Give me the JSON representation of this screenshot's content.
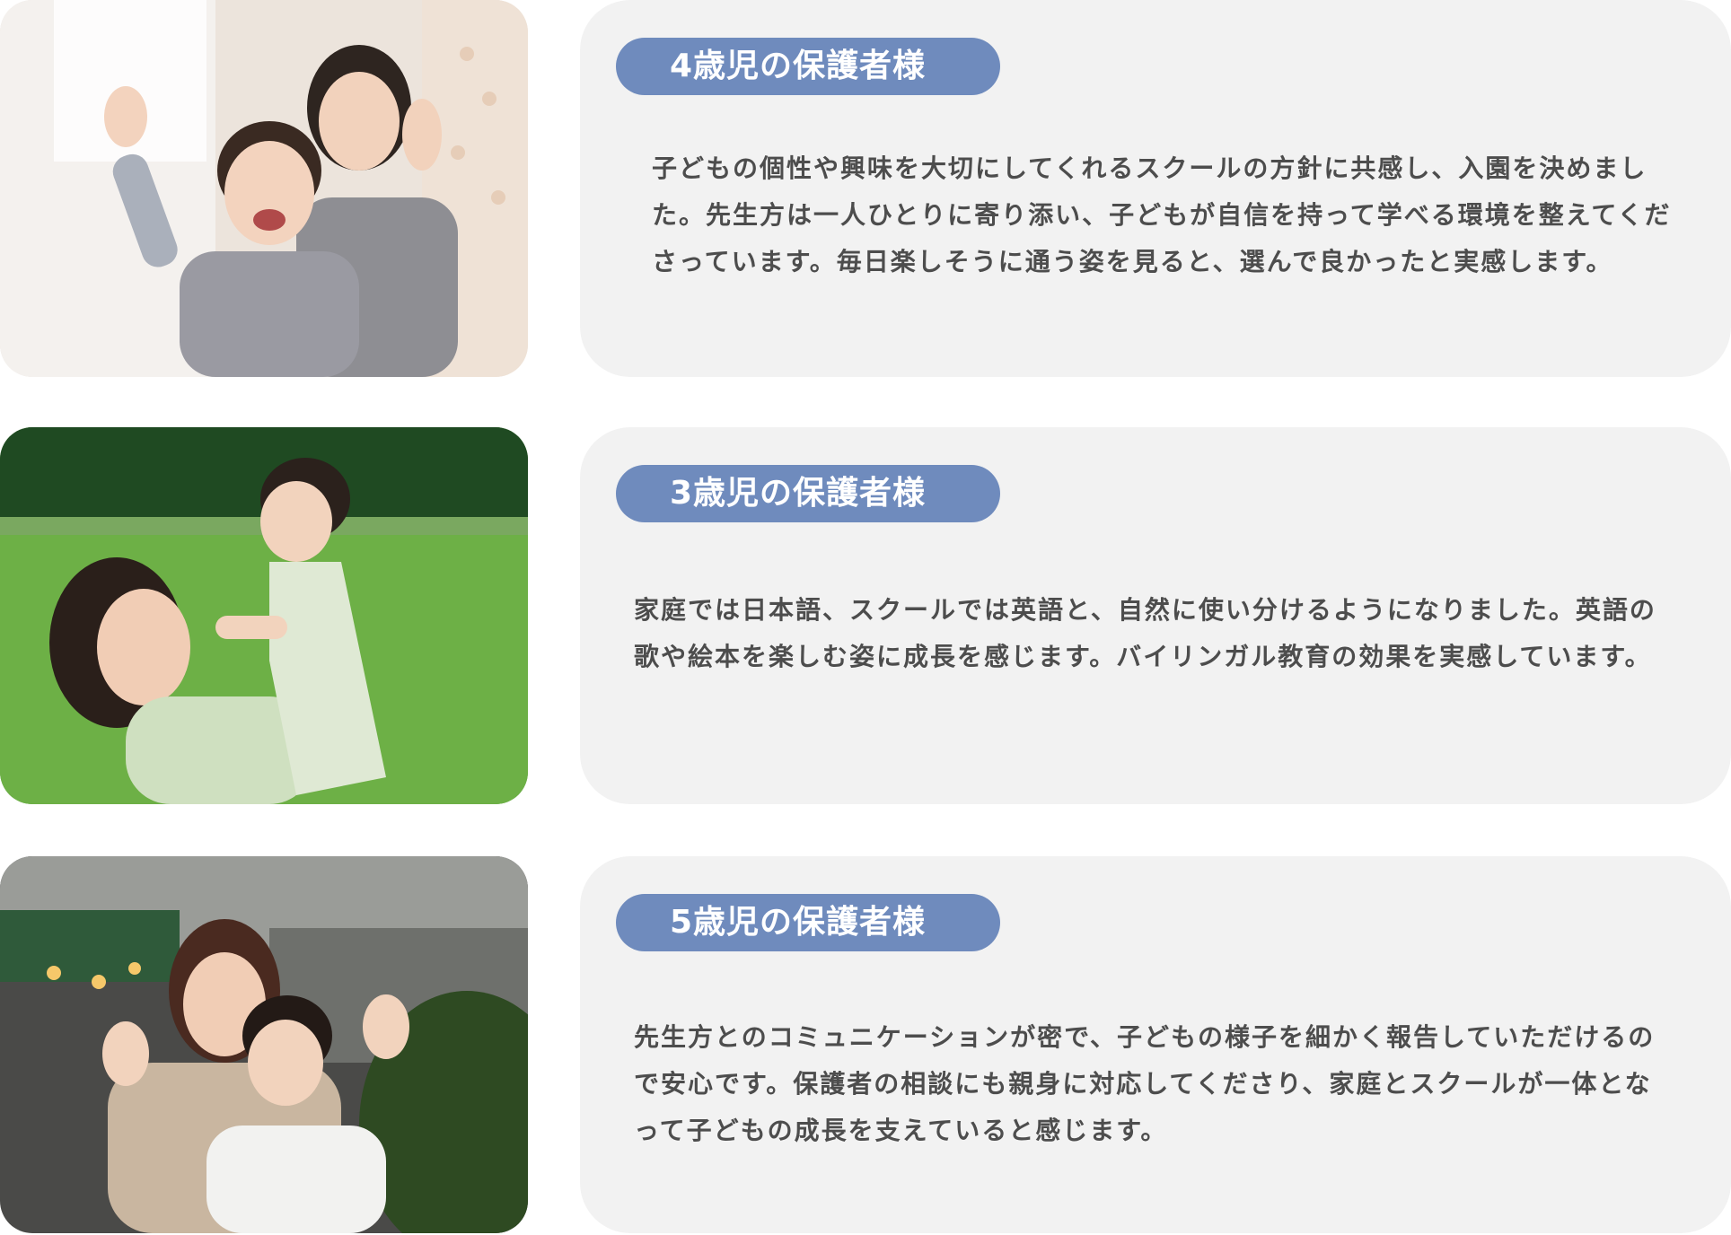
{
  "testimonials": [
    {
      "badge": "4歳児の保護者様",
      "text": "子どもの個性や興味を大切にしてくれるスクールの方針に共感し、入園を決めました。先生方は一人ひとりに寄り添い、子どもが自信を持って学べる環境を整えてくださっています。毎日楽しそうに通う姿を見ると、選んで良かったと実感します。",
      "photo_icon": "mother-and-son-indoor-photo"
    },
    {
      "badge": "3歳児の保護者様",
      "text": "家庭では日本語、スクールでは英語と、自然に使い分けるようになりました。英語の歌や絵本を楽しむ姿に成長を感じます。バイリンガル教育の効果を実感しています。",
      "photo_icon": "mother-lifting-daughter-park-photo"
    },
    {
      "badge": "5歳児の保護者様",
      "text": "先生方とのコミュニケーションが密で、子どもの様子を細かく報告していただけるので安心です。保護者の相談にも親身に対応してくださり、家庭とスクールが一体となって子どもの成長を支えていると感じます。",
      "photo_icon": "mother-and-child-street-photo"
    }
  ],
  "colors": {
    "badge": "#6f8bbd",
    "card": "#f2f2f2",
    "text": "#4d4d4d"
  }
}
